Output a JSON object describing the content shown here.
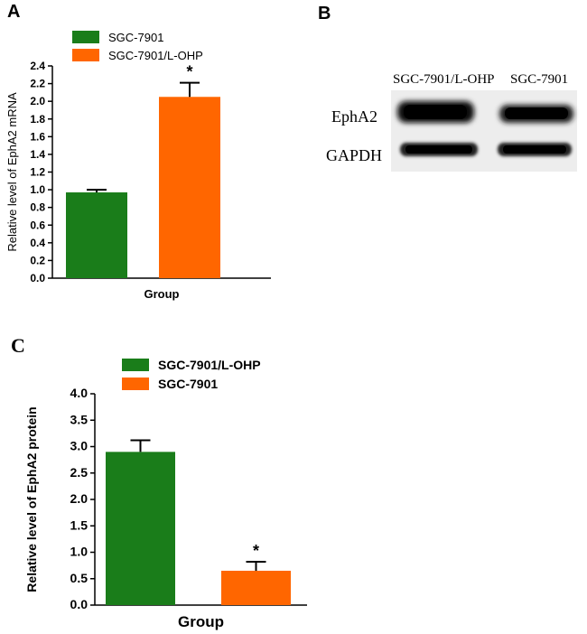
{
  "panels": {
    "A": {
      "letter": "A"
    },
    "B": {
      "letter": "B",
      "lanes": [
        "SGC-7901/L-OHP",
        "SGC-7901"
      ],
      "rows": [
        "EphA2",
        "GAPDH"
      ]
    },
    "C": {
      "letter": "C"
    }
  },
  "chart_data": [
    {
      "type": "bar",
      "panel": "A",
      "categories": [
        "SGC-7901",
        "SGC-7901/L-OHP"
      ],
      "values": [
        0.97,
        2.05
      ],
      "errors": [
        0.03,
        0.16
      ],
      "significance": [
        "",
        "*"
      ],
      "colors": [
        "#1a7d1a",
        "#ff6600"
      ],
      "xlabel": "Group",
      "ylabel": "Relative level of EphA2 mRNA",
      "ylim": [
        0,
        2.4
      ],
      "yticks": [
        0.0,
        0.2,
        0.4,
        0.6,
        0.8,
        1.0,
        1.2,
        1.4,
        1.6,
        1.8,
        2.0,
        2.2,
        2.4
      ],
      "ytick_labels": [
        "0.0",
        "0.2",
        "0.4",
        "0.6",
        "0.8",
        "1.0",
        "1.2",
        "1.4",
        "1.6",
        "1.8",
        "2.0",
        "2.2",
        "2.4"
      ],
      "legend": [
        "SGC-7901",
        "SGC-7901/L-OHP"
      ],
      "legend_position": "top"
    },
    {
      "type": "bar",
      "panel": "C",
      "categories": [
        "SGC-7901/L-OHP",
        "SGC-7901"
      ],
      "values": [
        2.9,
        0.65
      ],
      "errors": [
        0.22,
        0.17
      ],
      "significance": [
        "",
        "*"
      ],
      "colors": [
        "#1a7d1a",
        "#ff6600"
      ],
      "xlabel": "Group",
      "ylabel": "Relative level of EphA2 protein",
      "ylim": [
        0,
        4.0
      ],
      "yticks": [
        0.0,
        0.5,
        1.0,
        1.5,
        2.0,
        2.5,
        3.0,
        3.5,
        4.0
      ],
      "ytick_labels": [
        "0.0",
        "0.5",
        "1.0",
        "1.5",
        "2.0",
        "2.5",
        "3.0",
        "3.5",
        "4.0"
      ],
      "legend": [
        "SGC-7901/L-OHP",
        "SGC-7901"
      ],
      "legend_position": "top"
    }
  ]
}
